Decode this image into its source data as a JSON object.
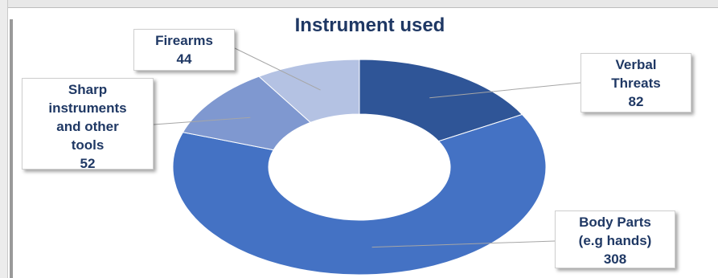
{
  "chart_data": {
    "type": "pie",
    "title": "Instrument used",
    "categories": [
      "Verbal Threats",
      "Body Parts (e.g hands)",
      "Sharp instruments and other tools",
      "Firearms"
    ],
    "values": [
      82,
      308,
      52,
      44
    ],
    "donut": true,
    "legend": "none",
    "colors": [
      "#2f5597",
      "#4472c4",
      "#7f98d0",
      "#b4c2e3"
    ],
    "labels": [
      {
        "lines": [
          "Verbal",
          "Threats"
        ],
        "value": "82"
      },
      {
        "lines": [
          "Body Parts",
          "(e.g hands)"
        ],
        "value": "308"
      },
      {
        "lines": [
          "Sharp",
          "instruments",
          "and other",
          "tools"
        ],
        "value": "52"
      },
      {
        "lines": [
          "Firearms"
        ],
        "value": "44"
      }
    ]
  }
}
